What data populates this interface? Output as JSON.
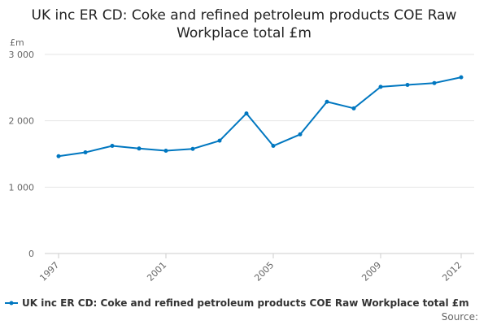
{
  "chart_data": {
    "type": "line",
    "title": "UK inc ER CD: Coke and refined petroleum products COE Raw Workplace total £m",
    "ylabel": "£m",
    "xlabel": "",
    "x": [
      1997,
      1998,
      1999,
      2000,
      2001,
      2002,
      2003,
      2004,
      2005,
      2006,
      2007,
      2008,
      2009,
      2010,
      2011,
      2012
    ],
    "x_ticks": [
      "1997",
      "2001",
      "2005",
      "2009",
      "2012"
    ],
    "y_ticks": [
      "0",
      "1 000",
      "2 000",
      "3 000"
    ],
    "ylim": [
      0,
      3000
    ],
    "grid": true,
    "legend_position": "bottom",
    "series": [
      {
        "name": "UK inc ER CD: Coke and refined petroleum products COE Raw Workplace total £m",
        "color": "#0077c0",
        "values": [
          1466,
          1524,
          1622,
          1582,
          1549,
          1577,
          1700,
          2111,
          1622,
          1795,
          2287,
          2188,
          2512,
          2541,
          2569,
          2656
        ]
      }
    ],
    "source_label": "Source:"
  }
}
